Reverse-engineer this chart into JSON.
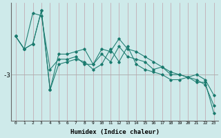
{
  "xlabel": "Humidex (Indice chaleur)",
  "bg_color": "#ceeaea",
  "line_color": "#1a7a6e",
  "vgrid_color": "#c0a0a8",
  "hline_color": "#aaaaaa",
  "ytick_label": "-3",
  "ytick_value": -3.0,
  "xlim": [
    -0.5,
    23.5
  ],
  "ylim": [
    -4.8,
    -0.2
  ],
  "x_ticks": [
    0,
    1,
    2,
    3,
    4,
    5,
    6,
    7,
    8,
    9,
    10,
    11,
    12,
    13,
    14,
    15,
    16,
    17,
    18,
    19,
    20,
    21,
    22,
    23
  ],
  "line1_x": [
    0,
    1,
    2,
    3,
    4,
    5,
    6,
    7,
    8,
    9,
    10,
    11,
    12,
    13,
    14,
    15,
    16,
    17,
    18,
    19,
    20,
    21,
    22,
    23
  ],
  "line1_y": [
    -1.5,
    -2.0,
    -0.6,
    -0.7,
    -2.8,
    -2.4,
    -2.4,
    -2.3,
    -2.6,
    -2.6,
    -2.2,
    -2.5,
    -1.9,
    -2.3,
    -2.4,
    -2.5,
    -2.8,
    -2.7,
    -2.9,
    -3.0,
    -3.1,
    -3.2,
    -3.4,
    -4.2
  ],
  "line2_x": [
    0,
    1,
    2,
    3,
    4,
    5,
    6,
    7,
    8,
    9,
    10,
    11,
    12,
    13,
    14,
    15,
    16,
    17,
    18,
    19,
    20,
    21,
    22,
    23
  ],
  "line2_y": [
    -1.5,
    -2.0,
    -1.8,
    -0.5,
    -3.6,
    -2.2,
    -2.2,
    -2.1,
    -2.0,
    -2.6,
    -2.0,
    -2.1,
    -1.6,
    -2.0,
    -2.1,
    -2.3,
    -2.5,
    -2.7,
    -3.0,
    -3.0,
    -3.1,
    -3.0,
    -3.2,
    -3.8
  ],
  "line3_x": [
    0,
    1,
    2,
    3,
    4,
    5,
    6,
    7,
    8,
    9,
    10,
    11,
    12,
    13,
    14,
    15,
    16,
    17,
    18,
    19,
    20,
    21,
    22,
    23
  ],
  "line3_y": [
    -1.5,
    -2.0,
    -1.8,
    -0.5,
    -3.6,
    -2.6,
    -2.5,
    -2.4,
    -2.5,
    -2.8,
    -2.6,
    -2.0,
    -2.5,
    -1.9,
    -2.6,
    -2.8,
    -2.9,
    -3.0,
    -3.2,
    -3.2,
    -3.1,
    -3.3,
    -3.3,
    -4.5
  ],
  "marker": "D",
  "marker_size": 1.8,
  "linewidth": 0.75
}
